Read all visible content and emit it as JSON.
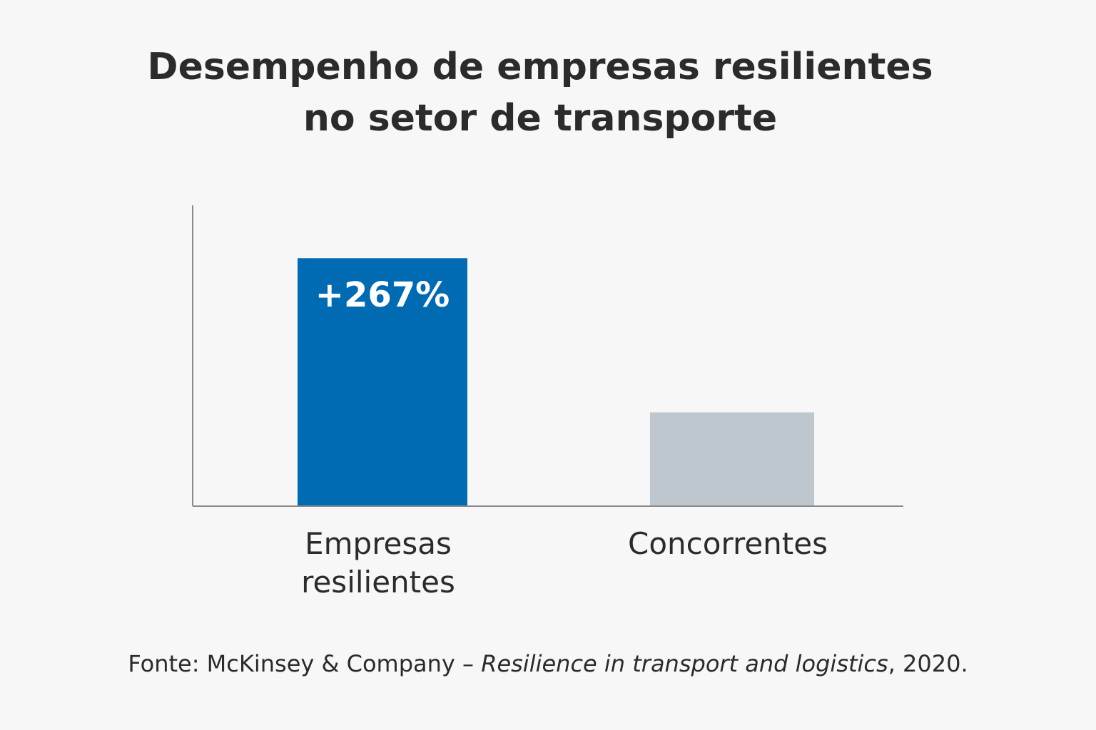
{
  "chart_data": {
    "type": "bar",
    "title": [
      "Desempenho de empresas resilientes",
      "no setor de transporte"
    ],
    "categories": [
      "Empresas resilientes",
      "Concorrentes"
    ],
    "values": [
      267,
      101
    ],
    "value_labels": [
      "+267%",
      null
    ],
    "colors": [
      "#006bb3",
      "#bfc7ce"
    ],
    "ylim": [
      0,
      324
    ],
    "source": {
      "prefix": "Fonte: McKinsey & Company – ",
      "work": "Resilience in transport and logistics",
      "suffix": ", 2020."
    }
  }
}
